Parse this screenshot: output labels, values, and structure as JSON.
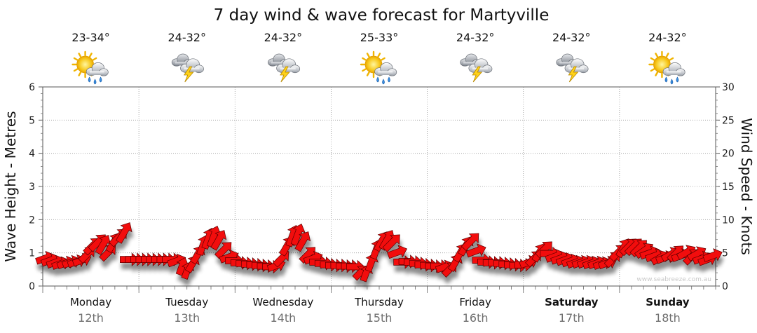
{
  "chart_data": {
    "type": "line",
    "title": "7 day wind & wave forecast for Martyville",
    "ylabel": "Wave Height - Metres",
    "y2label": "Wind Speed - Knots",
    "ylim": [
      0,
      6
    ],
    "y2lim": [
      0,
      30
    ],
    "yticks": [
      "0",
      "1",
      "2",
      "3",
      "4",
      "5",
      "6"
    ],
    "y2ticks": [
      "0",
      "5",
      "10",
      "15",
      "20",
      "25",
      "30"
    ],
    "grid": true,
    "watermark": "www.seabreeze.com.au",
    "days": [
      {
        "day": "Monday",
        "date": "12th",
        "temp": "23-34°",
        "icon": "sun-cloud-rain-icon",
        "bold": false
      },
      {
        "day": "Tuesday",
        "date": "13th",
        "temp": "24-32°",
        "icon": "storm-cloud-icon",
        "bold": false
      },
      {
        "day": "Wednesday",
        "date": "14th",
        "temp": "24-32°",
        "icon": "storm-cloud-icon",
        "bold": false
      },
      {
        "day": "Thursday",
        "date": "15th",
        "temp": "25-33°",
        "icon": "sun-cloud-rain-icon",
        "bold": false
      },
      {
        "day": "Friday",
        "date": "16th",
        "temp": "24-32°",
        "icon": "storm-cloud-icon",
        "bold": false
      },
      {
        "day": "Saturday",
        "date": "17th",
        "temp": "24-32°",
        "icon": "storm-cloud-icon",
        "bold": true
      },
      {
        "day": "Sunday",
        "date": "18th",
        "temp": "24-32°",
        "icon": "sun-cloud-rain-icon",
        "bold": true
      }
    ],
    "series": [
      {
        "values_unit": "knots",
        "wind_knots": [
          4.2,
          3.9,
          3.6,
          3.4,
          3.5,
          3.6,
          3.7,
          3.9,
          4.8,
          6.1,
          6.6,
          6.3,
          5.1,
          6.6,
          7.4,
          8.1,
          4,
          4,
          4,
          4,
          4,
          4,
          4,
          4,
          4,
          3.8,
          3.0,
          2.4,
          3.4,
          4.8,
          6.2,
          7.2,
          7.5,
          7.0,
          5.5,
          4.4,
          3.8,
          3.5,
          3.4,
          3.3,
          3.2,
          3.1,
          3.0,
          2.9,
          3.1,
          4.2,
          6.1,
          7.6,
          7.8,
          6.8,
          4.8,
          4.2,
          3.6,
          3.4,
          3.2,
          3.1,
          3.1,
          3.0,
          3.0,
          2.9,
          2.1,
          2.0,
          3.6,
          5.6,
          6.8,
          7.0,
          6.6,
          5.1,
          3.6,
          3.7,
          3.6,
          3.4,
          3.2,
          3.1,
          3.0,
          3.0,
          2.9,
          2.6,
          3.6,
          5.1,
          6.1,
          6.8,
          5.3,
          3.9,
          3.6,
          3.5,
          3.5,
          3.4,
          3.3,
          3.2,
          3.1,
          3.2,
          3.6,
          4.2,
          5.1,
          5.6,
          4.9,
          4.5,
          4.2,
          4.0,
          3.8,
          3.6,
          3.6,
          3.6,
          3.5,
          3.5,
          3.4,
          3.5,
          4.1,
          5.1,
          5.8,
          6.0,
          6.0,
          5.8,
          5.4,
          5.0,
          4.6,
          4.3,
          4.3,
          4.8,
          5.0,
          4.6,
          5.1,
          4.5,
          4.9,
          4.2,
          4.0,
          4.6
        ],
        "wind_direction_deg": [
          250,
          250,
          250,
          250,
          250,
          250,
          250,
          250,
          225,
          225,
          225,
          210,
          225,
          210,
          225,
          210,
          270,
          270,
          270,
          270,
          270,
          270,
          270,
          270,
          270,
          250,
          200,
          200,
          210,
          210,
          200,
          200,
          200,
          210,
          225,
          250,
          270,
          270,
          270,
          270,
          270,
          270,
          270,
          270,
          250,
          225,
          210,
          200,
          200,
          210,
          225,
          250,
          270,
          270,
          270,
          270,
          270,
          270,
          270,
          270,
          225,
          200,
          200,
          200,
          210,
          210,
          225,
          250,
          270,
          270,
          270,
          270,
          270,
          270,
          270,
          270,
          250,
          225,
          210,
          210,
          210,
          225,
          250,
          270,
          270,
          270,
          270,
          270,
          270,
          270,
          270,
          270,
          250,
          225,
          210,
          225,
          270,
          250,
          250,
          250,
          250,
          250,
          250,
          250,
          250,
          250,
          250,
          250,
          225,
          225,
          210,
          225,
          225,
          225,
          235,
          250,
          250,
          240,
          250,
          240,
          225,
          250,
          240,
          225,
          240,
          250,
          250,
          250
        ]
      }
    ]
  }
}
